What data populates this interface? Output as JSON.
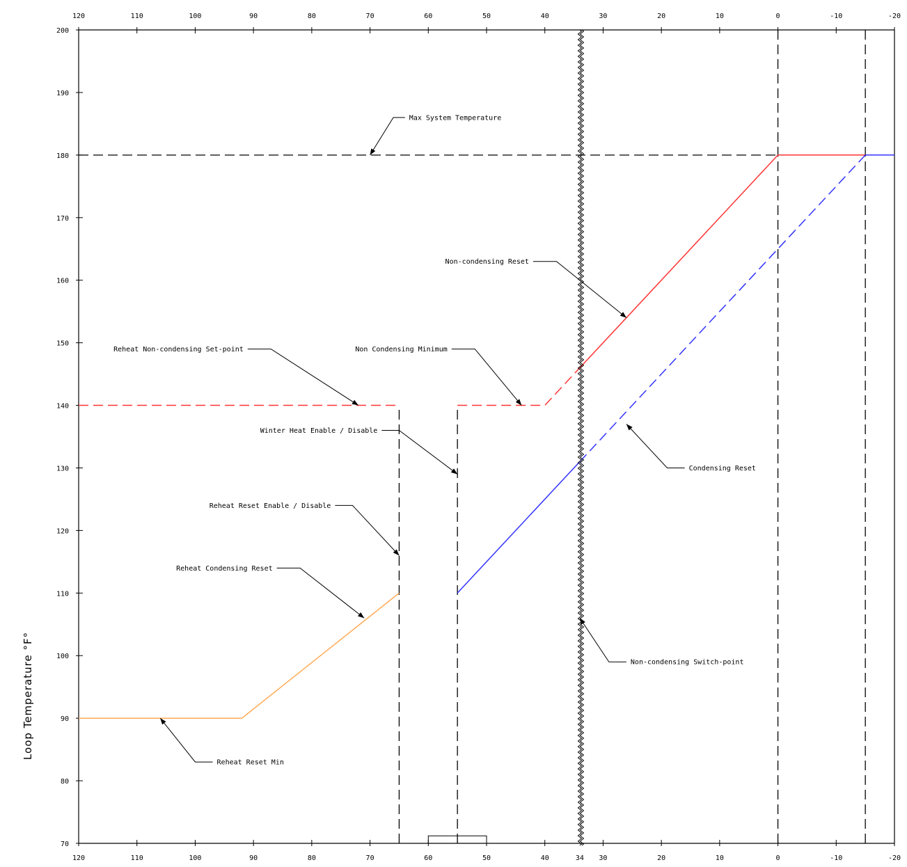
{
  "chart_data": {
    "type": "line",
    "title": "",
    "xlabel": "",
    "ylabel": "Loop Temperature °F°",
    "xlim": [
      120,
      -20
    ],
    "ylim": [
      70,
      200
    ],
    "x_reversed": true,
    "grid": false,
    "x_ticks": [
      120,
      110,
      100,
      90,
      80,
      70,
      60,
      50,
      40,
      30,
      20,
      10,
      0,
      -10,
      -20
    ],
    "x_tick_labels_top": [
      "120",
      "110",
      "100",
      "90",
      "80",
      "70",
      "60",
      "50",
      "40",
      "30",
      "20",
      "10",
      "0",
      "-10",
      "-20"
    ],
    "x_tick_labels_bottom": [
      "120",
      "110",
      "100",
      "90",
      "80",
      "70",
      "60",
      "50",
      "40",
      "30",
      "20",
      "10",
      "0",
      "-10",
      "-20"
    ],
    "x_extra_bottom_tick": {
      "x": 34,
      "label": "34"
    },
    "y_ticks": [
      70,
      80,
      90,
      100,
      110,
      120,
      130,
      140,
      150,
      160,
      170,
      180,
      190,
      200
    ],
    "y_tick_labels": [
      "70",
      "80",
      "90",
      "100",
      "110",
      "120",
      "130",
      "140",
      "150",
      "160",
      "170",
      "180",
      "190",
      "200"
    ],
    "colors": {
      "axis": "#000000",
      "non_condensing_reset": "#ff3333",
      "condensing_reset": "#3333ff",
      "reheat_condensing_reset": "#ffaa55",
      "reference_lines": "#000000"
    },
    "series": [
      {
        "key": "reheat_condensing",
        "style": "solid",
        "color": "#ffaa55",
        "points": [
          [
            120,
            90
          ],
          [
            92,
            90
          ],
          [
            65,
            110
          ]
        ]
      },
      {
        "key": "reheat_noncondensing",
        "style": "dashed",
        "color": "#ff3333",
        "points": [
          [
            120,
            140
          ],
          [
            65,
            140
          ]
        ]
      },
      {
        "key": "noncondensing_min",
        "style": "dashed",
        "color": "#ff3333",
        "points": [
          [
            55,
            140
          ],
          [
            40,
            140
          ],
          [
            34,
            146
          ]
        ]
      },
      {
        "key": "noncondensing_reset",
        "style": "solid",
        "color": "#ff3333",
        "points": [
          [
            34,
            146
          ],
          [
            0,
            180
          ],
          [
            -15,
            180
          ]
        ]
      },
      {
        "key": "condensing_reset_solid",
        "style": "solid",
        "color": "#3333ff",
        "points": [
          [
            55,
            110
          ],
          [
            34,
            131
          ]
        ]
      },
      {
        "key": "condensing_reset_dashed",
        "style": "dashed",
        "color": "#3333ff",
        "points": [
          [
            34,
            131
          ],
          [
            -15,
            180
          ]
        ]
      },
      {
        "key": "high_limit",
        "style": "solid",
        "color": "#3333ff",
        "points": [
          [
            -15,
            180
          ],
          [
            -20,
            180
          ]
        ]
      }
    ],
    "reference_lines": [
      {
        "key": "max_system_temperature",
        "orientation": "horizontal",
        "value": 180,
        "style": "dashed",
        "from": 120,
        "to": 0
      },
      {
        "key": "reheat_reset_enable",
        "orientation": "vertical",
        "value": 65,
        "style": "dashed",
        "from": 70,
        "to": 140
      },
      {
        "key": "winter_heat_enable",
        "orientation": "vertical",
        "value": 55,
        "style": "dashed",
        "from": 70,
        "to": 140
      },
      {
        "key": "outdoor_0",
        "orientation": "vertical",
        "value": 0,
        "style": "dashed",
        "from": 70,
        "to": 200
      },
      {
        "key": "outdoor_minus_15",
        "orientation": "vertical",
        "value": -15,
        "style": "dashed",
        "from": 70,
        "to": 200
      }
    ],
    "switch_point": {
      "key": "non_condensing_switch_point",
      "x": 34,
      "style": "wavy"
    },
    "annotations": [
      {
        "key": "max_system_temp",
        "text": "Max System Temperature",
        "point": [
          70,
          180
        ],
        "elbow": [
          66,
          186
        ],
        "label_at": [
          64,
          186
        ],
        "anchor": "start"
      },
      {
        "key": "non_condensing_reset",
        "text": "Non-condensing Reset",
        "point": [
          26,
          154
        ],
        "elbow": [
          38,
          163
        ],
        "label_at": [
          42,
          163
        ],
        "anchor": "end"
      },
      {
        "key": "reheat_nc_setpoint",
        "text": "Reheat Non-condensing Set-point",
        "point": [
          72,
          140
        ],
        "elbow": [
          87,
          149
        ],
        "label_at": [
          91,
          149
        ],
        "anchor": "end"
      },
      {
        "key": "non_condensing_min",
        "text": "Non Condensing Minimum",
        "point": [
          44,
          140
        ],
        "elbow": [
          52,
          149
        ],
        "label_at": [
          56,
          149
        ],
        "anchor": "end"
      },
      {
        "key": "winter_heat",
        "text": "Winter Heat Enable / Disable",
        "point": [
          55,
          129
        ],
        "elbow": [
          65,
          136
        ],
        "label_at": [
          68,
          136
        ],
        "anchor": "end"
      },
      {
        "key": "condensing_reset",
        "text": "Condensing Reset",
        "point": [
          26,
          137
        ],
        "elbow": [
          19,
          130
        ],
        "label_at": [
          16,
          130
        ],
        "anchor": "start"
      },
      {
        "key": "reheat_reset_enable",
        "text": "Reheat Reset Enable / Disable",
        "point": [
          65,
          116
        ],
        "elbow": [
          73,
          124
        ],
        "label_at": [
          76,
          124
        ],
        "anchor": "end"
      },
      {
        "key": "reheat_condensing_reset",
        "text": "Reheat Condensing Reset",
        "point": [
          71,
          106
        ],
        "elbow": [
          82,
          114
        ],
        "label_at": [
          86,
          114
        ],
        "anchor": "end"
      },
      {
        "key": "non_condensing_switch",
        "text": "Non-condensing Switch-point",
        "point": [
          34,
          106
        ],
        "elbow": [
          29,
          99
        ],
        "label_at": [
          26,
          99
        ],
        "anchor": "start"
      },
      {
        "key": "reheat_reset_min",
        "text": "Reheat Reset Min",
        "point": [
          106,
          90
        ],
        "elbow": [
          100,
          83
        ],
        "label_at": [
          97,
          83
        ],
        "anchor": "start"
      }
    ]
  }
}
